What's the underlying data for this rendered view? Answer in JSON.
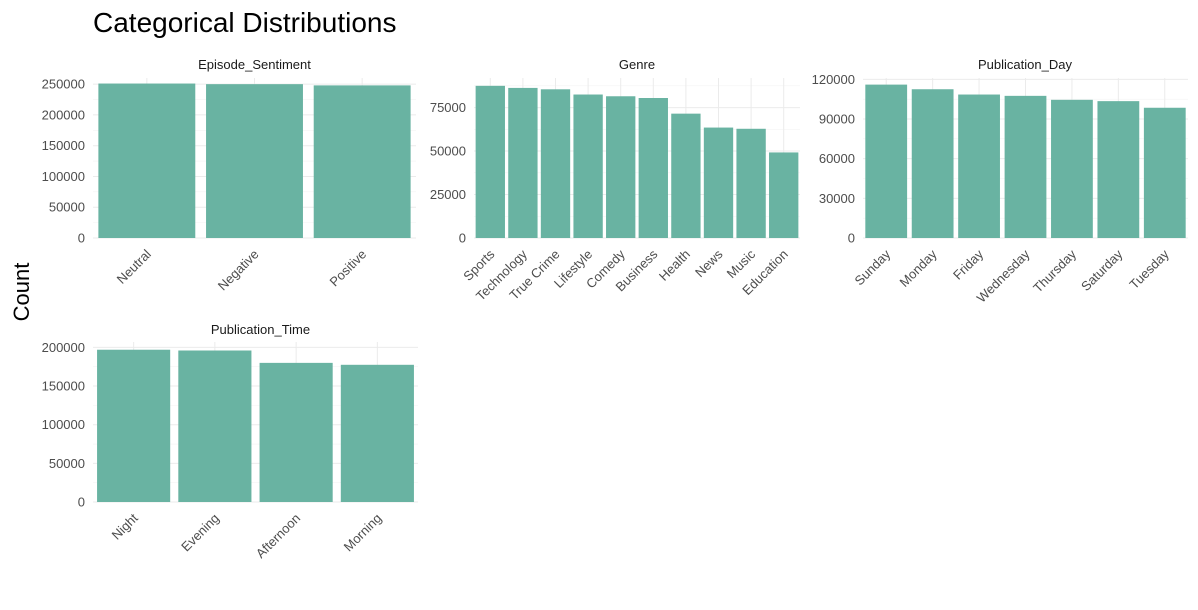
{
  "chart_data": {
    "type": "bar",
    "title": "Categorical Distributions",
    "ylabel": "Count",
    "xlabel": "",
    "bar_color": "#69b3a2",
    "facets": [
      {
        "name": "Episode_Sentiment",
        "categories": [
          "Neutral",
          "Negative",
          "Positive"
        ],
        "values": [
          251000,
          250000,
          248000
        ],
        "ylim": [
          0,
          260000
        ],
        "yticks": [
          0,
          50000,
          100000,
          150000,
          200000,
          250000
        ],
        "ytick_labels": [
          "0",
          "50000",
          "100000",
          "150000",
          "200000",
          "250000"
        ]
      },
      {
        "name": "Genre",
        "categories": [
          "Sports",
          "Technology",
          "True Crime",
          "Lifestyle",
          "Comedy",
          "Business",
          "Health",
          "News",
          "Music",
          "Education"
        ],
        "values": [
          87500,
          86300,
          85500,
          82500,
          81500,
          80500,
          71500,
          63500,
          62800,
          49200
        ],
        "ylim": [
          0,
          92000
        ],
        "yticks": [
          0,
          25000,
          50000,
          75000
        ],
        "ytick_labels": [
          "0",
          "25000",
          "50000",
          "75000"
        ]
      },
      {
        "name": "Publication_Day",
        "categories": [
          "Sunday",
          "Monday",
          "Friday",
          "Wednesday",
          "Thursday",
          "Saturday",
          "Tuesday"
        ],
        "values": [
          116000,
          112500,
          108500,
          107500,
          104500,
          103500,
          98500
        ],
        "ylim": [
          0,
          121000
        ],
        "yticks": [
          0,
          30000,
          60000,
          90000,
          120000
        ],
        "ytick_labels": [
          "0",
          "30000",
          "60000",
          "90000",
          "120000"
        ]
      },
      {
        "name": "Publication_Time",
        "categories": [
          "Night",
          "Evening",
          "Afternoon",
          "Morning"
        ],
        "values": [
          197000,
          196000,
          180000,
          177500
        ],
        "ylim": [
          0,
          207000
        ],
        "yticks": [
          0,
          50000,
          100000,
          150000,
          200000
        ],
        "ytick_labels": [
          "0",
          "50000",
          "100000",
          "150000",
          "200000"
        ]
      }
    ]
  }
}
